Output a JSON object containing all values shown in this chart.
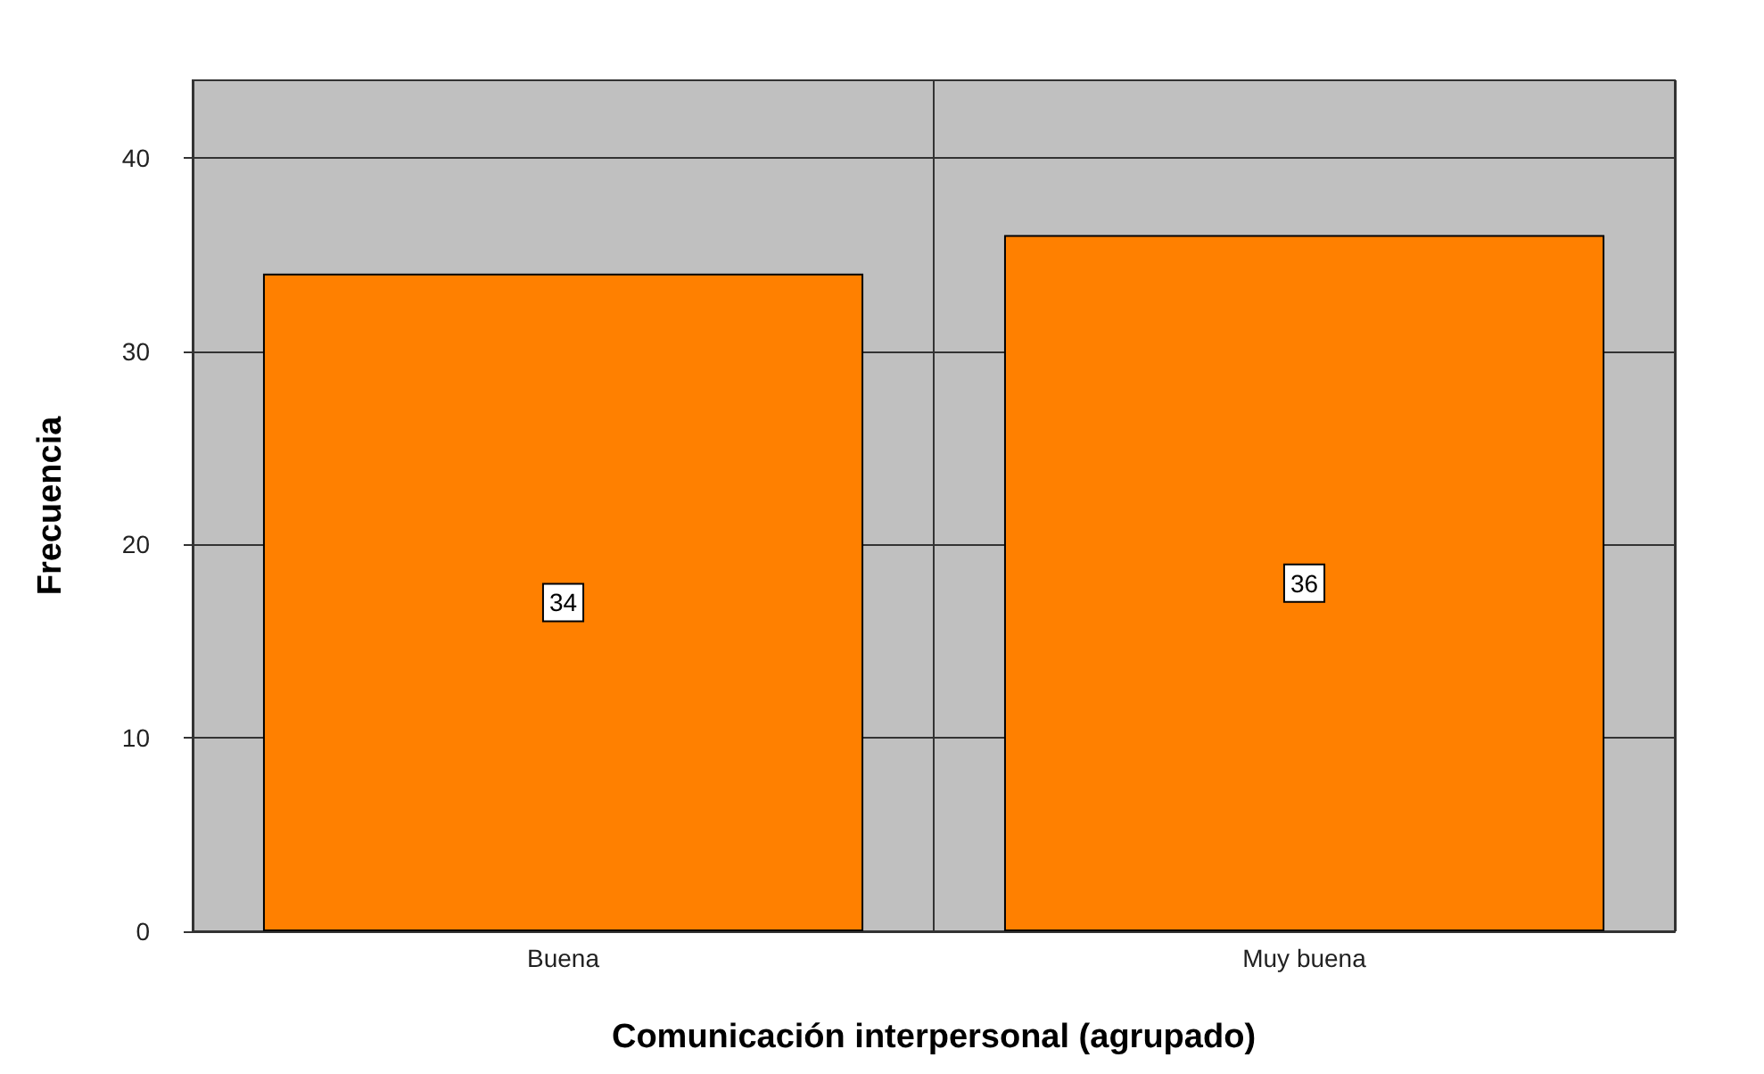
{
  "chart_data": {
    "type": "bar",
    "xlabel": "Comunicación interpersonal (agrupado)",
    "ylabel": "Frecuencia",
    "categories": [
      "Buena",
      "Muy buena"
    ],
    "values": [
      34,
      36
    ],
    "color": "#ff8000",
    "ylim": [
      0,
      44
    ],
    "yticks": [
      0,
      10,
      20,
      30,
      40
    ],
    "grid": true,
    "data_labels": true
  }
}
